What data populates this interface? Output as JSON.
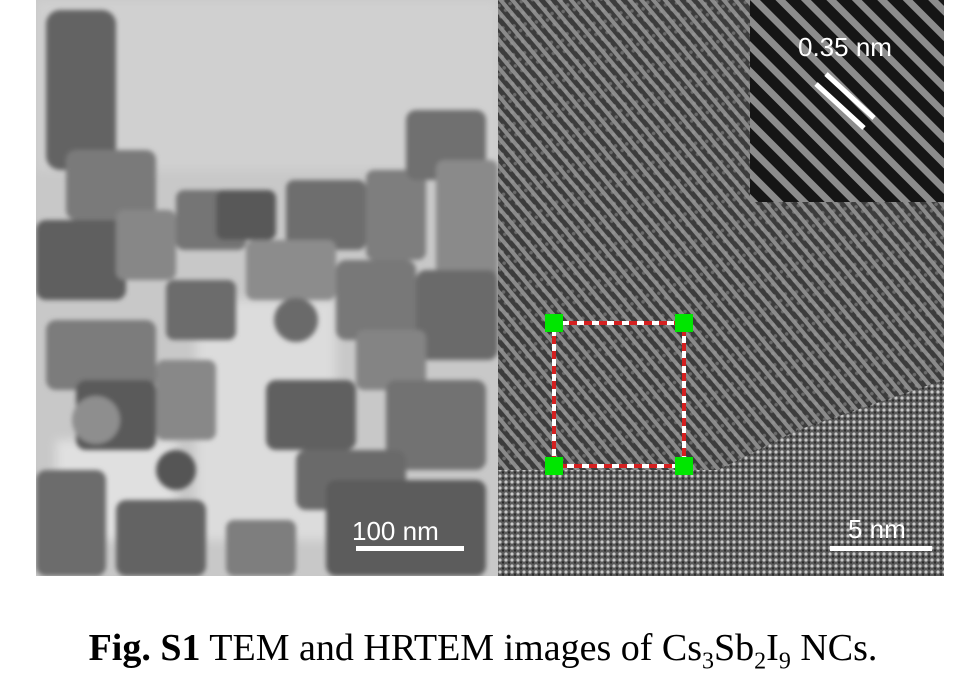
{
  "figure": {
    "left_panel": {
      "scale_label": "100 nm"
    },
    "right_panel": {
      "scale_label": "5 nm",
      "inset": {
        "label": "0.35 nm"
      },
      "selection_marker": {
        "corner_color": "#00e600",
        "line_color": "#d42020"
      }
    }
  },
  "caption": {
    "prefix": "Fig. S1",
    "text": " TEM and HRTEM images of ",
    "formula": [
      "Cs",
      "3",
      "Sb",
      "2",
      "I",
      "9"
    ],
    "suffix": " NCs."
  }
}
